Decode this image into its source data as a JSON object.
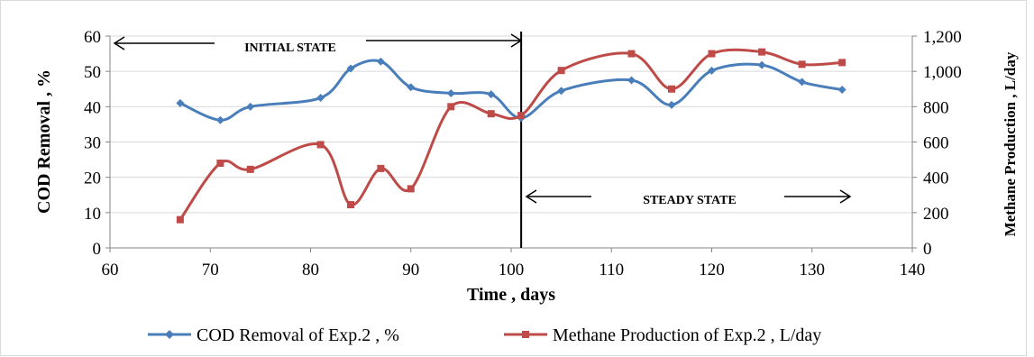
{
  "chart_data": {
    "type": "line",
    "xlabel": "Time , days",
    "ylabel_left": "COD Removal , %",
    "ylabel_right": "Methane Production , L/day",
    "xlim": [
      60,
      140
    ],
    "ylim_left": [
      0,
      60
    ],
    "ylim_right": [
      0,
      1200
    ],
    "x_ticks": [
      "60",
      "70",
      "80",
      "90",
      "100",
      "110",
      "120",
      "130",
      "140"
    ],
    "y_left_ticks": [
      "0",
      "10",
      "20",
      "30",
      "40",
      "50",
      "60"
    ],
    "y_right_ticks": [
      "0",
      "200",
      "400",
      "600",
      "800",
      "1,000",
      "1,200"
    ],
    "grid": "horizontal",
    "legend_position": "bottom",
    "series": [
      {
        "name": "COD Removal of Exp.2 , %",
        "axis": "left",
        "color": "#4a7ebb",
        "marker": "diamond",
        "x": [
          67,
          71,
          74,
          81,
          84,
          87,
          90,
          94,
          98,
          101,
          105,
          112,
          116,
          120,
          125,
          129,
          133
        ],
        "y": [
          41,
          36.2,
          40,
          42.5,
          50.8,
          52.8,
          45.5,
          43.8,
          43.5,
          36.8,
          44.5,
          47.5,
          40.5,
          50.2,
          51.8,
          47,
          44.8
        ]
      },
      {
        "name": "Methane Production of Exp.2 , L/day",
        "axis": "right",
        "color": "#be4b48",
        "marker": "square",
        "x": [
          67,
          71,
          74,
          81,
          84,
          87,
          90,
          94,
          98,
          101,
          105,
          112,
          116,
          120,
          125,
          129,
          133
        ],
        "y": [
          160,
          480,
          445,
          585,
          245,
          450,
          335,
          800,
          760,
          750,
          1005,
          1100,
          900,
          1100,
          1110,
          1040,
          1050
        ]
      }
    ],
    "annotations": {
      "initial_state": "INITIAL STATE",
      "steady_state": "STEADY STATE"
    },
    "divider_x": 101
  }
}
